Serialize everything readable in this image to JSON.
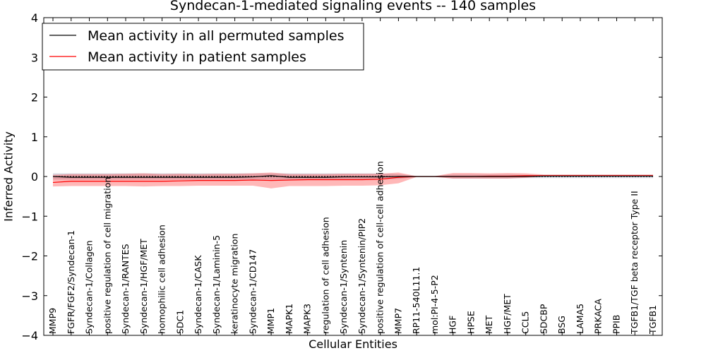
{
  "chart_data": {
    "type": "line",
    "title": "Syndecan-1-mediated signaling events -- 140 samples",
    "xlabel": "Cellular Entities",
    "ylabel": "Inferred Activity",
    "ylim": [
      -4,
      4
    ],
    "yticks": [
      "4",
      "3",
      "2",
      "1",
      "0",
      "−1",
      "−2",
      "−3",
      "−4"
    ],
    "ytick_values": [
      4,
      3,
      2,
      1,
      0,
      -1,
      -2,
      -3,
      -4
    ],
    "legend_placement": "top-left",
    "categories": [
      "MMP9",
      "FGFR/FGF2/Syndecan-1",
      "Syndecan-1/Collagen",
      "positive regulation of cell migration",
      "Syndecan-1/RANTES",
      "Syndecan-1/HGF/MET",
      "homophilic cell adhesion",
      "SDC1",
      "Syndecan-1/CASK",
      "Syndecan-1/Laminin-5",
      "keratinocyte migration",
      "Syndecan-1/CD147",
      "MMP1",
      "MAPK1",
      "MAPK3",
      "regulation of cell adhesion",
      "Syndecan-1/Syntenin",
      "Syndecan-1/Syntenin/PIP2",
      "positive regulation of cell-cell adhesion",
      "MMP7",
      "RP11-540L11.1",
      "mol:PI-4-5-P2",
      "HGF",
      "HPSE",
      "MET",
      "HGF/MET",
      "CCL5",
      "SDCBP",
      "BSG",
      "LAMA5",
      "PRKACA",
      "PPIB",
      "TGFB1/TGF beta receptor Type II",
      "TGFB1"
    ],
    "series": [
      {
        "name": "Mean activity in all permuted samples",
        "color": "#000000",
        "values": [
          0.0,
          -0.02,
          -0.02,
          -0.02,
          -0.02,
          -0.02,
          -0.02,
          -0.02,
          -0.02,
          -0.02,
          -0.02,
          -0.01,
          0.02,
          -0.02,
          -0.02,
          -0.02,
          -0.01,
          -0.01,
          -0.01,
          0.0,
          0.0,
          0.0,
          0.0,
          0.0,
          0.0,
          0.0,
          0.0,
          0.01,
          0.01,
          0.01,
          0.01,
          0.01,
          0.01,
          0.01
        ],
        "band_low": [
          -0.08,
          -0.08,
          -0.08,
          -0.08,
          -0.08,
          -0.08,
          -0.08,
          -0.08,
          -0.08,
          -0.08,
          -0.08,
          -0.08,
          -0.08,
          -0.08,
          -0.08,
          -0.08,
          -0.08,
          -0.08,
          -0.08,
          -0.06,
          -0.01,
          -0.01,
          -0.05,
          -0.05,
          -0.05,
          -0.05,
          -0.04,
          -0.04,
          -0.04,
          -0.04,
          -0.04,
          -0.04,
          -0.04,
          -0.04
        ],
        "band_high": [
          0.08,
          0.08,
          0.08,
          0.08,
          0.08,
          0.08,
          0.08,
          0.08,
          0.08,
          0.08,
          0.08,
          0.08,
          0.08,
          0.08,
          0.08,
          0.08,
          0.08,
          0.08,
          0.08,
          0.06,
          0.01,
          0.01,
          0.05,
          0.05,
          0.05,
          0.05,
          0.04,
          0.04,
          0.04,
          0.04,
          0.04,
          0.04,
          0.04,
          0.04
        ]
      },
      {
        "name": "Mean activity in patient samples",
        "color": "#ff0000",
        "values": [
          -0.15,
          -0.12,
          -0.12,
          -0.12,
          -0.12,
          -0.12,
          -0.12,
          -0.11,
          -0.1,
          -0.1,
          -0.1,
          -0.09,
          -0.1,
          -0.09,
          -0.08,
          -0.08,
          -0.08,
          -0.08,
          -0.07,
          -0.02,
          0.0,
          0.0,
          0.0,
          0.0,
          0.01,
          0.01,
          0.02,
          0.02,
          0.02,
          0.02,
          0.02,
          0.02,
          0.02,
          0.02
        ],
        "band_low": [
          -0.25,
          -0.24,
          -0.24,
          -0.24,
          -0.24,
          -0.25,
          -0.24,
          -0.24,
          -0.23,
          -0.23,
          -0.23,
          -0.23,
          -0.3,
          -0.24,
          -0.24,
          -0.24,
          -0.23,
          -0.23,
          -0.22,
          -0.17,
          -0.01,
          -0.01,
          -0.05,
          -0.05,
          -0.05,
          -0.05,
          -0.03,
          0.0,
          0.0,
          0.0,
          0.0,
          0.0,
          0.0,
          0.0
        ],
        "band_high": [
          0.04,
          0.06,
          0.06,
          0.06,
          0.07,
          0.08,
          0.06,
          0.07,
          0.06,
          0.07,
          0.07,
          0.08,
          0.1,
          0.06,
          0.06,
          0.06,
          0.07,
          0.07,
          0.07,
          0.1,
          0.01,
          0.01,
          0.09,
          0.09,
          0.08,
          0.09,
          0.08,
          0.05,
          0.05,
          0.05,
          0.05,
          0.05,
          0.05,
          0.05
        ]
      }
    ]
  }
}
